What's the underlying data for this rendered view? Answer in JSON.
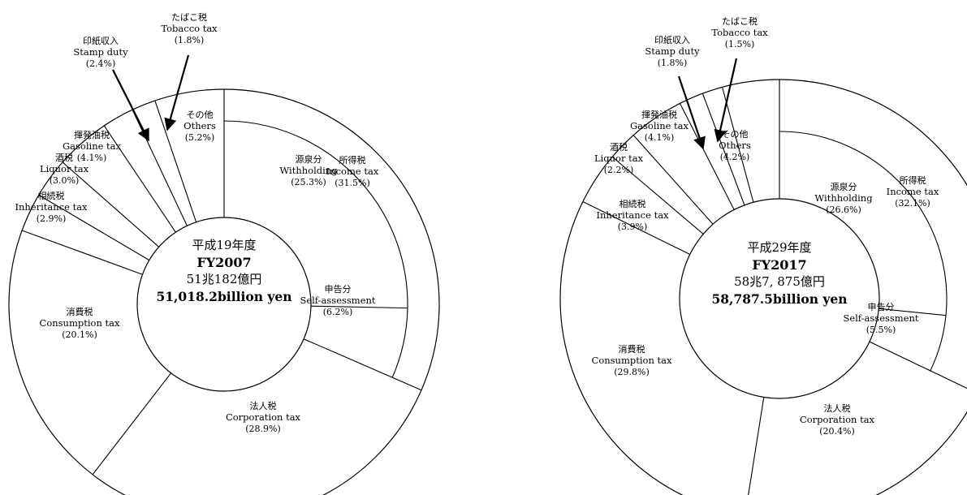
{
  "chart_data": [
    {
      "type": "pie",
      "center": {
        "era": "平成19年度",
        "fy": "FY2007",
        "amount_ja": "51兆182億円",
        "amount_en": "51,018.2billion yen"
      },
      "slices": [
        {
          "ja": "所得税",
          "en": "Income tax",
          "pct_label": "(31.5%)",
          "value": 31.5
        },
        {
          "ja": "法人税",
          "en": "Corporation tax",
          "pct_label": "(28.9%)",
          "value": 28.9
        },
        {
          "ja": "消費税",
          "en": "Consumption tax",
          "pct_label": "(20.1%)",
          "value": 20.1
        },
        {
          "ja": "相続税",
          "en": "Inheritance tax",
          "pct_label": "(2.9%)",
          "value": 2.9
        },
        {
          "ja": "酒税",
          "en": "Liquor tax",
          "pct_label": "(3.0%)",
          "value": 3.0
        },
        {
          "ja": "揮発油税",
          "en": "Gasoline tax",
          "pct_label": "(4.1%)",
          "value": 4.1
        },
        {
          "ja": "印紙収入",
          "en": "Stamp duty",
          "pct_label": "(2.4%)",
          "value": 2.4
        },
        {
          "ja": "たばこ税",
          "en": "Tobacco tax",
          "pct_label": "(1.8%)",
          "value": 1.8
        },
        {
          "ja": "その他",
          "en": "Others",
          "pct_label": "(5.2%)",
          "value": 5.2
        }
      ],
      "income_breakdown": [
        {
          "ja": "源泉分",
          "en": "Withholding",
          "pct_label": "(25.3%)",
          "value": 25.3
        },
        {
          "ja": "申告分",
          "en": "Self-assessment",
          "pct_label": "(6.2%)",
          "value": 6.2
        }
      ]
    },
    {
      "type": "pie",
      "center": {
        "era": "平成29年度",
        "fy": "FY2017",
        "amount_ja": "58兆7, 875億円",
        "amount_en": "58,787.5billion yen"
      },
      "slices": [
        {
          "ja": "所得税",
          "en": "Income tax",
          "pct_label": "(32.1%)",
          "value": 32.1
        },
        {
          "ja": "法人税",
          "en": "Corporation tax",
          "pct_label": "(20.4%)",
          "value": 20.4
        },
        {
          "ja": "消費税",
          "en": "Consumption tax",
          "pct_label": "(29.8%)",
          "value": 29.8
        },
        {
          "ja": "相続税",
          "en": "Inheritance tax",
          "pct_label": "(3.9%)",
          "value": 3.9
        },
        {
          "ja": "酒税",
          "en": "Liquor tax",
          "pct_label": "(2.2%)",
          "value": 2.2
        },
        {
          "ja": "揮発油税",
          "en": "Gasoline tax",
          "pct_label": "(4.1%)",
          "value": 4.1
        },
        {
          "ja": "印紙収入",
          "en": "Stamp duty",
          "pct_label": "(1.8%)",
          "value": 1.8
        },
        {
          "ja": "たばこ税",
          "en": "Tobacco tax",
          "pct_label": "(1.5%)",
          "value": 1.5
        },
        {
          "ja": "その他",
          "en": "Others",
          "pct_label": "(4.2%)",
          "value": 4.2
        }
      ],
      "income_breakdown": [
        {
          "ja": "源泉分",
          "en": "Withholding",
          "pct_label": "(26.6%)",
          "value": 26.6
        },
        {
          "ja": "申告分",
          "en": "Self-assessment",
          "pct_label": "(5.5%)",
          "value": 5.5
        }
      ]
    }
  ]
}
